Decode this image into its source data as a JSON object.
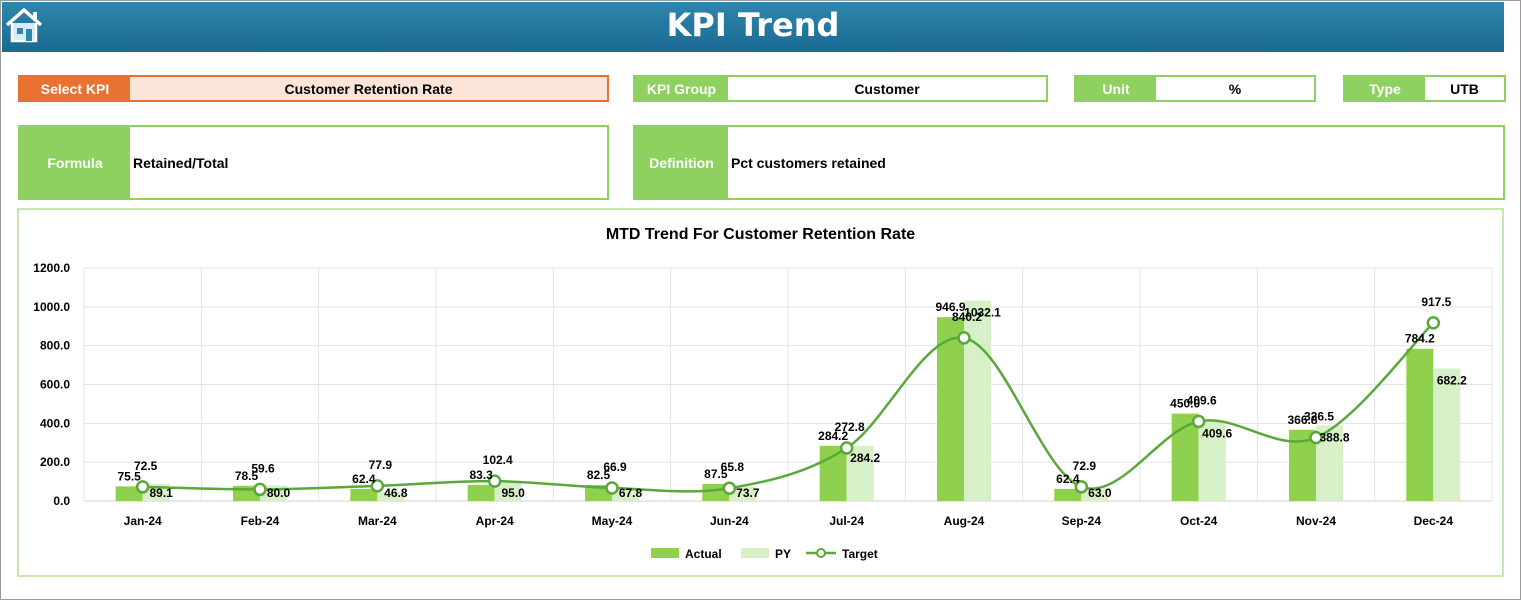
{
  "header": {
    "title": "KPI Trend",
    "home_icon": "home-icon"
  },
  "kpi": {
    "select_label": "Select KPI",
    "select_value": "Customer Retention Rate",
    "group_label": "KPI Group",
    "group_value": "Customer",
    "unit_label": "Unit",
    "unit_value": "%",
    "type_label": "Type",
    "type_value": "UTB",
    "formula_label": "Formula",
    "formula_value": "Retained/Total",
    "definition_label": "Definition",
    "definition_value": "Pct customers retained"
  },
  "colors": {
    "header_blue": "#1f77a4",
    "accent_green": "#8fd160",
    "select_orange": "#e97132",
    "actual": "#8fd14f",
    "py": "#d8f0c8",
    "target": "#5aa839"
  },
  "chart_data": {
    "type": "bar",
    "title": "MTD Trend For Customer Retention Rate",
    "categories": [
      "Jan-24",
      "Feb-24",
      "Mar-24",
      "Apr-24",
      "May-24",
      "Jun-24",
      "Jul-24",
      "Aug-24",
      "Sep-24",
      "Oct-24",
      "Nov-24",
      "Dec-24"
    ],
    "series": [
      {
        "name": "Actual",
        "type": "bar",
        "values": [
          75.5,
          78.5,
          62.4,
          83.3,
          82.5,
          87.5,
          284.2,
          946.9,
          62.4,
          450.0,
          366.8,
          784.2
        ]
      },
      {
        "name": "PY",
        "type": "bar",
        "values": [
          89.1,
          80.0,
          46.8,
          95.0,
          67.8,
          73.7,
          284.2,
          1032.1,
          63.0,
          409.6,
          388.8,
          682.2
        ]
      },
      {
        "name": "Target",
        "type": "line",
        "values": [
          72.5,
          59.6,
          77.9,
          102.4,
          66.9,
          65.8,
          272.8,
          840.2,
          72.9,
          409.6,
          326.5,
          917.5
        ]
      }
    ],
    "y_ticks": [
      "0.0",
      "200.0",
      "400.0",
      "600.0",
      "800.0",
      "1000.0",
      "1200.0"
    ],
    "ylim": [
      0,
      1200
    ],
    "grid": true,
    "legend": "bottom"
  }
}
